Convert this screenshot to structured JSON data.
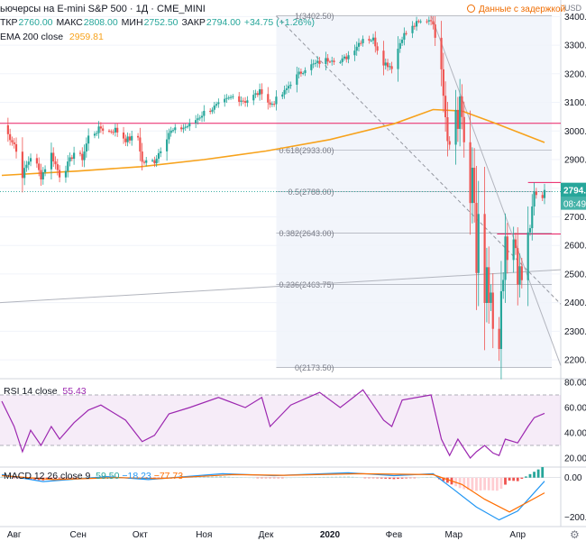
{
  "header": {
    "title": "ьючерсы на E-mini S&P 500 · 1Д · CME_MINI",
    "ohlc": {
      "open_label": "ТКР",
      "open": "2760.00",
      "high_label": "МАКС",
      "high": "2808.00",
      "low_label": "МИН",
      "low": "2752.50",
      "close_label": "ЗАКР",
      "close": "2794.00",
      "change": "+34.75 (+1.26%)"
    },
    "ema_label": "EMA 200 close",
    "ema_value": "2959.81",
    "delay_notice": "Данные с задержкой",
    "currency": "USD"
  },
  "colors": {
    "up": "#26a69a",
    "down": "#ef5350",
    "ema": "#f7a21b",
    "hline": "#e91e63",
    "rsi": "#9c27b0",
    "macd": "#2196f3",
    "signal": "#ff6d00"
  },
  "chart_data": [
    {
      "type": "candlestick",
      "title": "ьючерсы на E-mini S&P 500 · 1Д · CME_MINI",
      "x_ticks": [
        "Авг",
        "Сен",
        "Окт",
        "Ноя",
        "Дек",
        "2020",
        "Фев",
        "Мар",
        "Апр"
      ],
      "ylim": [
        2150,
        3420
      ],
      "y_ticks": [
        "3400.00",
        "3300.00",
        "3200.00",
        "3100.00",
        "3000.00",
        "2900.00",
        "2800.00",
        "2700.00",
        "2600.00",
        "2500.00",
        "2400.00",
        "2300.00",
        "2200.00"
      ],
      "last_price": "2794.00",
      "countdown": "08:49",
      "horizontal_levels": [
        3027,
        2820,
        2640
      ],
      "fib_levels": [
        {
          "label": "1(3402.50)",
          "value": 3402.5
        },
        {
          "label": "0.618(2933.00)",
          "value": 2933.0
        },
        {
          "label": "0.5(2788.00)",
          "value": 2788.0
        },
        {
          "label": "0.382(2643.00)",
          "value": 2643.0
        },
        {
          "label": "0.236(2463.75)",
          "value": 2463.75
        },
        {
          "label": "0(2173.50)",
          "value": 2173.5
        }
      ],
      "anchors": [
        {
          "date": "2019-07-26",
          "close": 3020
        },
        {
          "date": "2019-08-01",
          "close": 2955
        },
        {
          "date": "2019-08-05",
          "close": 2845
        },
        {
          "date": "2019-08-07",
          "close": 2880
        },
        {
          "date": "2019-08-09",
          "close": 2910
        },
        {
          "date": "2019-08-12",
          "close": 2880
        },
        {
          "date": "2019-08-14",
          "close": 2840
        },
        {
          "date": "2019-08-19",
          "close": 2920
        },
        {
          "date": "2019-08-23",
          "close": 2845
        },
        {
          "date": "2019-08-26",
          "close": 2870
        },
        {
          "date": "2019-08-30",
          "close": 2925
        },
        {
          "date": "2019-09-03",
          "close": 2905
        },
        {
          "date": "2019-09-06",
          "close": 2980
        },
        {
          "date": "2019-09-12",
          "close": 3010
        },
        {
          "date": "2019-09-16",
          "close": 2998
        },
        {
          "date": "2019-09-19",
          "close": 3005
        },
        {
          "date": "2019-09-24",
          "close": 2970
        },
        {
          "date": "2019-09-30",
          "close": 2978
        },
        {
          "date": "2019-10-02",
          "close": 2890
        },
        {
          "date": "2019-10-08",
          "close": 2895
        },
        {
          "date": "2019-10-15",
          "close": 2995
        },
        {
          "date": "2019-10-25",
          "close": 3020
        },
        {
          "date": "2019-11-01",
          "close": 3065
        },
        {
          "date": "2019-11-08",
          "close": 3090
        },
        {
          "date": "2019-11-15",
          "close": 3120
        },
        {
          "date": "2019-11-21",
          "close": 3105
        },
        {
          "date": "2019-11-29",
          "close": 3140
        },
        {
          "date": "2019-12-03",
          "close": 3090
        },
        {
          "date": "2019-12-10",
          "close": 3135
        },
        {
          "date": "2019-12-13",
          "close": 3170
        },
        {
          "date": "2019-12-20",
          "close": 3220
        },
        {
          "date": "2019-12-27",
          "close": 3240
        },
        {
          "date": "2020-01-02",
          "close": 3255
        },
        {
          "date": "2020-01-06",
          "close": 3240
        },
        {
          "date": "2020-01-10",
          "close": 3265
        },
        {
          "date": "2020-01-17",
          "close": 3325
        },
        {
          "date": "2020-01-22",
          "close": 3320
        },
        {
          "date": "2020-01-27",
          "close": 3240
        },
        {
          "date": "2020-01-31",
          "close": 3225
        },
        {
          "date": "2020-02-05",
          "close": 3330
        },
        {
          "date": "2020-02-12",
          "close": 3375
        },
        {
          "date": "2020-02-19",
          "close": 3393
        },
        {
          "date": "2020-02-21",
          "close": 3335
        },
        {
          "date": "2020-02-24",
          "close": 3225
        },
        {
          "date": "2020-02-25",
          "close": 3130
        },
        {
          "date": "2020-02-27",
          "close": 2975
        },
        {
          "date": "2020-02-28",
          "close": 2950
        },
        {
          "date": "2020-03-02",
          "close": 3075
        },
        {
          "date": "2020-03-03",
          "close": 3010
        },
        {
          "date": "2020-03-04",
          "close": 3120
        },
        {
          "date": "2020-03-06",
          "close": 2960
        },
        {
          "date": "2020-03-09",
          "close": 2750
        },
        {
          "date": "2020-03-10",
          "close": 2880
        },
        {
          "date": "2020-03-11",
          "close": 2740
        },
        {
          "date": "2020-03-12",
          "close": 2500
        },
        {
          "date": "2020-03-13",
          "close": 2710
        },
        {
          "date": "2020-03-16",
          "close": 2390
        },
        {
          "date": "2020-03-17",
          "close": 2520
        },
        {
          "date": "2020-03-18",
          "close": 2400
        },
        {
          "date": "2020-03-19",
          "close": 2425
        },
        {
          "date": "2020-03-20",
          "close": 2300
        },
        {
          "date": "2020-03-23",
          "close": 2240
        },
        {
          "date": "2020-03-24",
          "close": 2440
        },
        {
          "date": "2020-03-25",
          "close": 2475
        },
        {
          "date": "2020-03-26",
          "close": 2625
        },
        {
          "date": "2020-03-27",
          "close": 2540
        },
        {
          "date": "2020-03-30",
          "close": 2620
        },
        {
          "date": "2020-03-31",
          "close": 2580
        },
        {
          "date": "2020-04-01",
          "close": 2460
        },
        {
          "date": "2020-04-02",
          "close": 2520
        },
        {
          "date": "2020-04-03",
          "close": 2480
        },
        {
          "date": "2020-04-06",
          "close": 2655
        },
        {
          "date": "2020-04-07",
          "close": 2650
        },
        {
          "date": "2020-04-08",
          "close": 2735
        },
        {
          "date": "2020-04-09",
          "close": 2785
        },
        {
          "date": "2020-04-13",
          "close": 2760
        },
        {
          "date": "2020-04-14",
          "close": 2794
        }
      ],
      "ema200": [
        {
          "date": "2019-07-26",
          "value": 2845
        },
        {
          "date": "2019-09-01",
          "value": 2860
        },
        {
          "date": "2019-10-01",
          "value": 2875
        },
        {
          "date": "2019-11-01",
          "value": 2900
        },
        {
          "date": "2019-12-01",
          "value": 2930
        },
        {
          "date": "2020-01-01",
          "value": 2970
        },
        {
          "date": "2020-02-01",
          "value": 3025
        },
        {
          "date": "2020-02-20",
          "value": 3075
        },
        {
          "date": "2020-03-05",
          "value": 3070
        },
        {
          "date": "2020-03-20",
          "value": 3030
        },
        {
          "date": "2020-04-14",
          "value": 2959.81
        }
      ]
    },
    {
      "type": "line",
      "title": "RSI 14 close",
      "value": "55.43",
      "ylim": [
        15,
        80
      ],
      "y_ticks": [
        "80.00",
        "60.00",
        "40.00",
        "20.00"
      ],
      "band": [
        30,
        70
      ],
      "series_points": [
        {
          "date": "2019-07-26",
          "value": 65
        },
        {
          "date": "2019-08-01",
          "value": 45
        },
        {
          "date": "2019-08-05",
          "value": 25
        },
        {
          "date": "2019-08-09",
          "value": 42
        },
        {
          "date": "2019-08-14",
          "value": 30
        },
        {
          "date": "2019-08-19",
          "value": 45
        },
        {
          "date": "2019-08-23",
          "value": 35
        },
        {
          "date": "2019-08-30",
          "value": 48
        },
        {
          "date": "2019-09-06",
          "value": 58
        },
        {
          "date": "2019-09-12",
          "value": 62
        },
        {
          "date": "2019-09-24",
          "value": 50
        },
        {
          "date": "2019-10-02",
          "value": 33
        },
        {
          "date": "2019-10-08",
          "value": 38
        },
        {
          "date": "2019-10-15",
          "value": 55
        },
        {
          "date": "2019-10-25",
          "value": 60
        },
        {
          "date": "2019-11-08",
          "value": 68
        },
        {
          "date": "2019-11-21",
          "value": 60
        },
        {
          "date": "2019-11-29",
          "value": 68
        },
        {
          "date": "2019-12-03",
          "value": 45
        },
        {
          "date": "2019-12-13",
          "value": 62
        },
        {
          "date": "2019-12-27",
          "value": 72
        },
        {
          "date": "2020-01-06",
          "value": 60
        },
        {
          "date": "2020-01-17",
          "value": 74
        },
        {
          "date": "2020-01-27",
          "value": 50
        },
        {
          "date": "2020-01-31",
          "value": 45
        },
        {
          "date": "2020-02-05",
          "value": 66
        },
        {
          "date": "2020-02-19",
          "value": 70
        },
        {
          "date": "2020-02-24",
          "value": 35
        },
        {
          "date": "2020-02-28",
          "value": 22
        },
        {
          "date": "2020-03-03",
          "value": 35
        },
        {
          "date": "2020-03-09",
          "value": 20
        },
        {
          "date": "2020-03-12",
          "value": 25
        },
        {
          "date": "2020-03-16",
          "value": 30
        },
        {
          "date": "2020-03-20",
          "value": 24
        },
        {
          "date": "2020-03-23",
          "value": 22
        },
        {
          "date": "2020-03-26",
          "value": 35
        },
        {
          "date": "2020-04-01",
          "value": 32
        },
        {
          "date": "2020-04-06",
          "value": 45
        },
        {
          "date": "2020-04-09",
          "value": 52
        },
        {
          "date": "2020-04-14",
          "value": 55.43
        }
      ]
    },
    {
      "type": "line",
      "title": "MACD 12 26 close 9",
      "values": [
        "59.50",
        "−18.23",
        "−77.73"
      ],
      "ylim": [
        -240,
        40
      ],
      "y_ticks": [
        "0.00",
        "−200.00"
      ],
      "macd": [
        {
          "date": "2019-07-26",
          "value": 15
        },
        {
          "date": "2019-08-15",
          "value": -20
        },
        {
          "date": "2019-09-15",
          "value": 5
        },
        {
          "date": "2019-10-05",
          "value": -10
        },
        {
          "date": "2019-11-10",
          "value": 20
        },
        {
          "date": "2019-12-05",
          "value": 10
        },
        {
          "date": "2020-01-10",
          "value": 25
        },
        {
          "date": "2020-02-01",
          "value": 10
        },
        {
          "date": "2020-02-20",
          "value": 20
        },
        {
          "date": "2020-03-01",
          "value": -60
        },
        {
          "date": "2020-03-12",
          "value": -150
        },
        {
          "date": "2020-03-23",
          "value": -215
        },
        {
          "date": "2020-04-01",
          "value": -170
        },
        {
          "date": "2020-04-14",
          "value": -18.23
        }
      ],
      "signal": [
        {
          "date": "2019-07-26",
          "value": 10
        },
        {
          "date": "2019-08-20",
          "value": -10
        },
        {
          "date": "2019-09-20",
          "value": 0
        },
        {
          "date": "2019-10-10",
          "value": -5
        },
        {
          "date": "2019-11-15",
          "value": 15
        },
        {
          "date": "2019-12-10",
          "value": 12
        },
        {
          "date": "2020-01-15",
          "value": 20
        },
        {
          "date": "2020-02-20",
          "value": 15
        },
        {
          "date": "2020-03-05",
          "value": -35
        },
        {
          "date": "2020-03-16",
          "value": -110
        },
        {
          "date": "2020-03-28",
          "value": -175
        },
        {
          "date": "2020-04-14",
          "value": -77.73
        }
      ],
      "histogram_last": "59.50"
    }
  ]
}
